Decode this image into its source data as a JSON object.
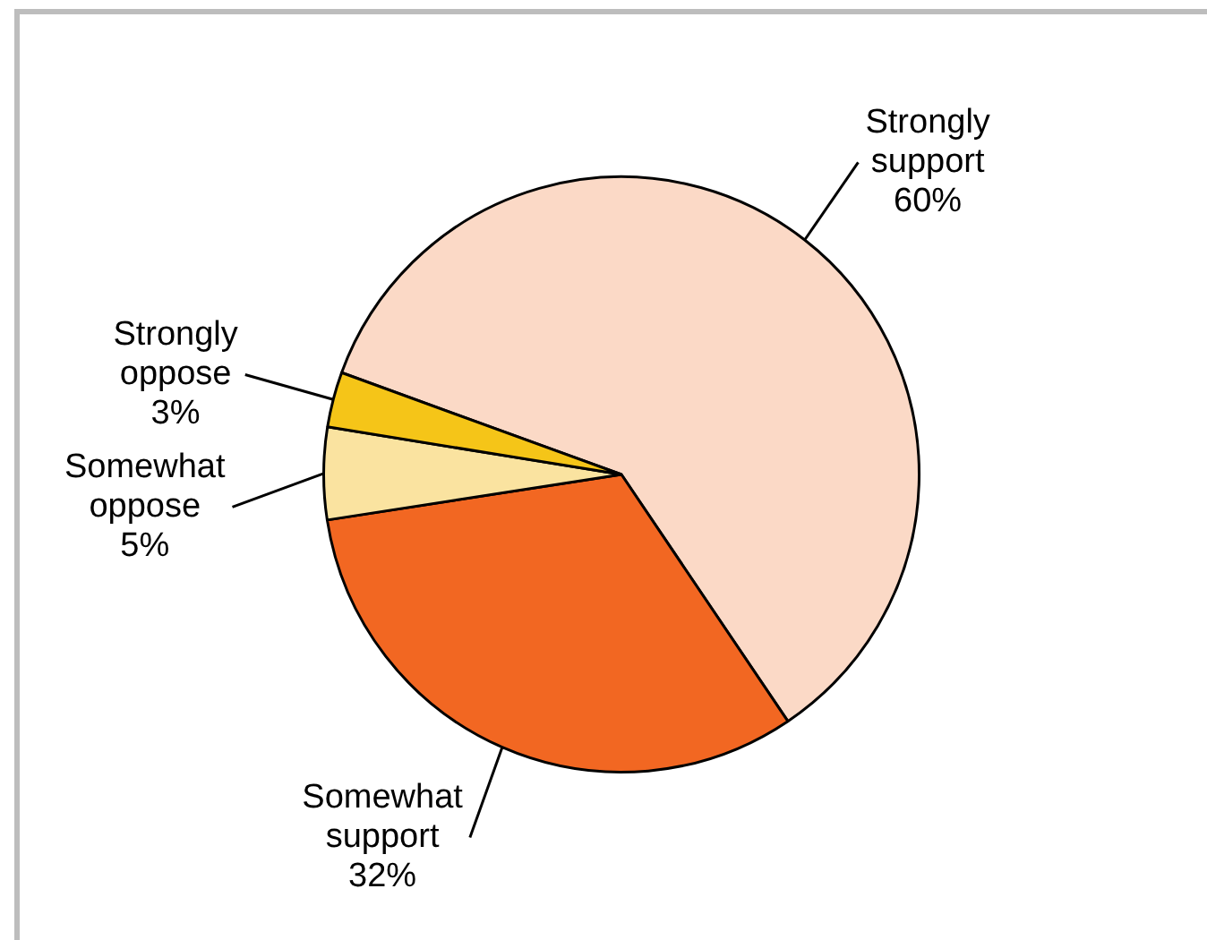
{
  "chart_data": {
    "type": "pie",
    "categories": [
      "Strongly support",
      "Somewhat support",
      "Somewhat oppose",
      "Strongly oppose"
    ],
    "values": [
      60,
      32,
      5,
      3
    ],
    "colors": [
      "#fbd9c6",
      "#f26722",
      "#fae3a0",
      "#f5c518"
    ],
    "value_labels": [
      "60%",
      "32%",
      "5%",
      "3%"
    ],
    "legend": false
  }
}
